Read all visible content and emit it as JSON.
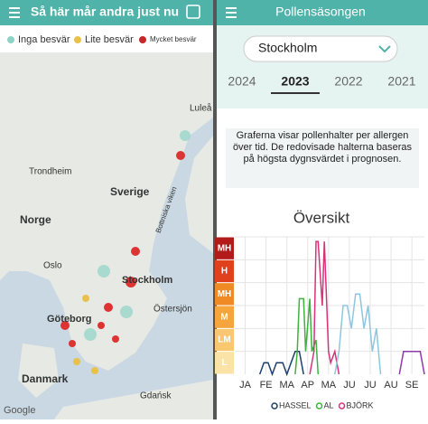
{
  "map_panel": {
    "header": "Så här mår andra just nu",
    "legend": [
      "Inga besvär",
      "Lite besvär",
      "Mycket besvär"
    ],
    "labels": [
      "Luleå",
      "Trondheim",
      "Sverige",
      "Norge",
      "Bottniska viken",
      "Oslo",
      "Stockholm",
      "Östersjön",
      "Göteborg",
      "Danmark",
      "Gdańsk",
      "Google"
    ]
  },
  "pollen_panel": {
    "header": "Pollensäsongen",
    "city": "Stockholm",
    "years": [
      "2024",
      "2023",
      "2022",
      "2021"
    ],
    "selected_year": "2023",
    "description": "Graferna visar pollenhalter per allergen över tid. De redovisade halterna baseras på högsta dygnsvärdet i prognosen.",
    "chart_data": {
      "type": "line",
      "title": "Översikt",
      "categories": [
        "JA",
        "FE",
        "MA",
        "AP",
        "MA",
        "JU",
        "JU",
        "AU",
        "SE"
      ],
      "xlim": [
        0,
        9.1
      ],
      "ylim": [
        0,
        6
      ],
      "yticks": [
        {
          "value": 0.5,
          "label": "L"
        },
        {
          "value": 1.5,
          "label": "LM"
        },
        {
          "value": 2.5,
          "label": "M"
        },
        {
          "value": 3.5,
          "label": "MH"
        },
        {
          "value": 4.5,
          "label": "H"
        },
        {
          "value": 5.5,
          "label": "MH"
        }
      ],
      "ytick_colors": [
        "#fbe3a8",
        "#f8c770",
        "#f5a53a",
        "#f08a24",
        "#e0401c",
        "#b31b1b"
      ],
      "series": [
        {
          "name": "HASSEL",
          "color": "#1d3f6e",
          "x": [
            1.2,
            1.4,
            1.6,
            1.8,
            2.0,
            2.3,
            2.5,
            2.7,
            2.9,
            3.1,
            3.3
          ],
          "values": [
            0,
            0.5,
            0.5,
            0,
            0.5,
            0.5,
            0,
            0.5,
            1,
            1,
            0
          ]
        },
        {
          "name": "AL",
          "color": "#3cb33c",
          "x": [
            2.9,
            3.0,
            3.1,
            3.3,
            3.4,
            3.6,
            3.7,
            3.9,
            4.0
          ],
          "values": [
            0,
            1,
            3.3,
            3.3,
            1,
            3.3,
            1,
            1.5,
            0
          ]
        },
        {
          "name": "BJÖRK",
          "color": "#d6337a",
          "x": [
            3.6,
            3.8,
            3.9,
            4.0,
            4.2,
            4.3,
            4.5,
            4.6,
            4.8,
            5.0
          ],
          "values": [
            0,
            1,
            5.8,
            5.8,
            3,
            5.8,
            1,
            0.5,
            1,
            0
          ]
        },
        {
          "color": "#8ec5e0",
          "x": [
            4.8,
            5.0,
            5.2,
            5.4,
            5.6,
            5.8,
            6.0,
            6.2,
            6.4,
            6.6,
            6.8,
            7.0
          ],
          "values": [
            0,
            1,
            3,
            3,
            2,
            3.5,
            3.5,
            2,
            3,
            1,
            2,
            0
          ]
        },
        {
          "color": "#8e3aa8",
          "x": [
            7.9,
            8.1,
            8.3,
            8.5,
            8.7,
            8.9,
            9.1
          ],
          "values": [
            0,
            1,
            1,
            1,
            1,
            1,
            0
          ]
        }
      ]
    }
  }
}
